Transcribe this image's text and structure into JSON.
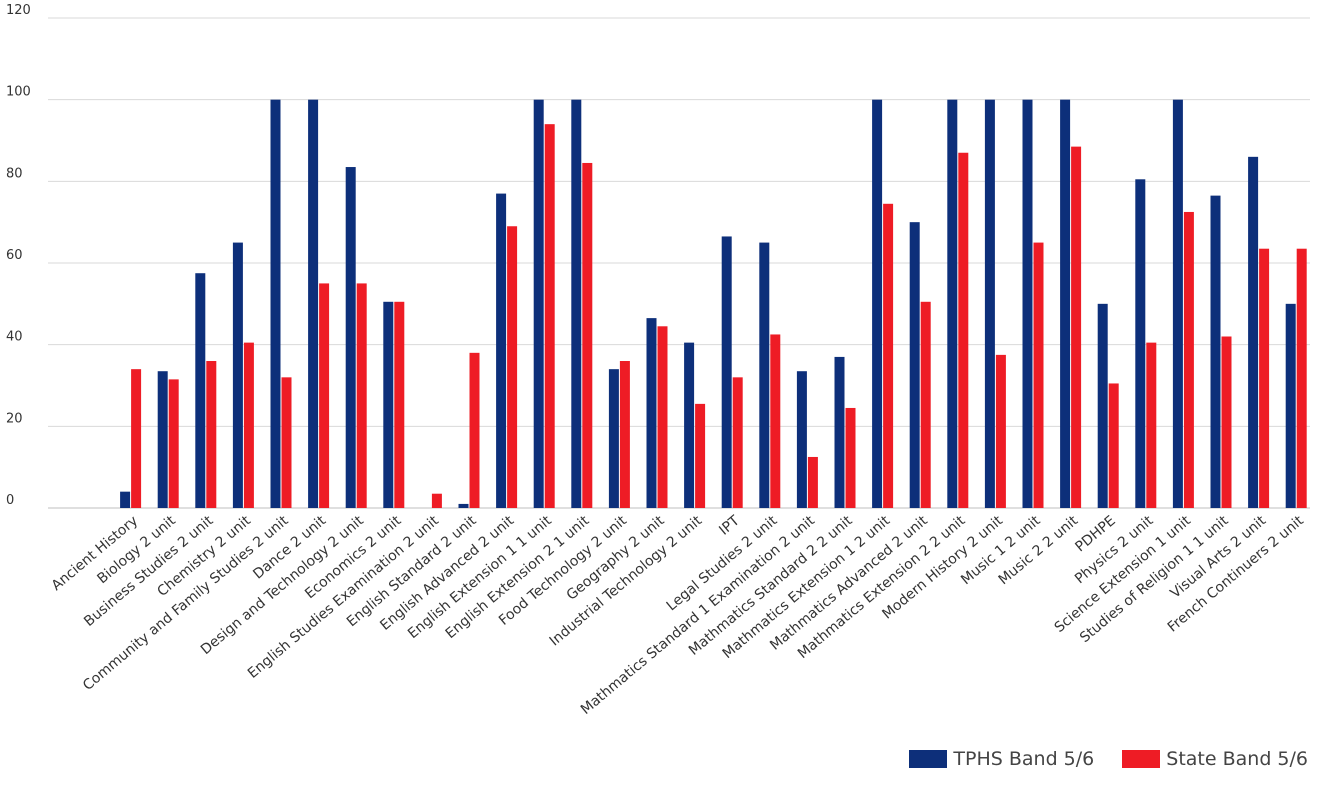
{
  "chart_data": {
    "type": "bar",
    "categories": [
      "Ancient History",
      "Biology 2 unit",
      "Business Studies 2 unit",
      "Chemistry 2 unit",
      "Community and Family Studies 2 unit",
      "Dance 2 unit",
      "Design and Technology 2 unit",
      "Economics 2 unit",
      "English Studies Examination 2 unit",
      "English Standard 2 unit",
      "English Advanced 2 unit",
      "English Extension 1 1 unit",
      "English Extension 2 1 unit",
      "Food Technology 2 unit",
      "Geography 2 unit",
      "Industrial Technology 2 unit",
      "IPT",
      "Legal Studies 2 unit",
      "Mathmatics Standard 1 Examination 2 unit",
      "Mathmatics Standard 2 2 unit",
      "Mathmatics Extension 1 2 unit",
      "Mathmatics Advanced 2 unit",
      "Mathmatics Extension 2 2 unit",
      "Modern History 2 unit",
      "Music 1 2 unit",
      "Music 2 2 unit",
      "PDHPE",
      "Physics 2 unit",
      "Science Extension 1 unit",
      "Studies of Religion 1 1 unit",
      "Visual Arts 2 unit",
      "French Continuers 2 unit"
    ],
    "series": [
      {
        "name": "TPHS Band 5/6",
        "color": "#0d2f7a",
        "values": [
          4,
          33.5,
          57.5,
          65,
          100,
          100,
          83.5,
          50.5,
          0,
          1,
          77,
          100,
          100,
          34,
          46.5,
          40.5,
          66.5,
          65,
          33.5,
          37,
          100,
          70,
          100,
          100,
          100,
          100,
          50,
          80.5,
          100,
          76.5,
          86,
          50
        ]
      },
      {
        "name": "State Band 5/6",
        "color": "#ee1c25",
        "values": [
          34,
          31.5,
          36,
          40.5,
          32,
          55,
          55,
          50.5,
          3.5,
          38,
          69,
          94,
          84.5,
          36,
          44.5,
          25.5,
          32,
          42.5,
          12.5,
          24.5,
          74.5,
          50.5,
          87,
          37.5,
          65,
          88.5,
          30.5,
          40.5,
          72.5,
          42,
          63.5,
          63.5
        ]
      }
    ],
    "title": "",
    "xlabel": "",
    "ylabel": "",
    "ylim": [
      0,
      120
    ],
    "yticks": [
      0,
      20,
      40,
      60,
      80,
      100,
      120
    ],
    "grid": true,
    "legend_position": "bottom-right"
  }
}
